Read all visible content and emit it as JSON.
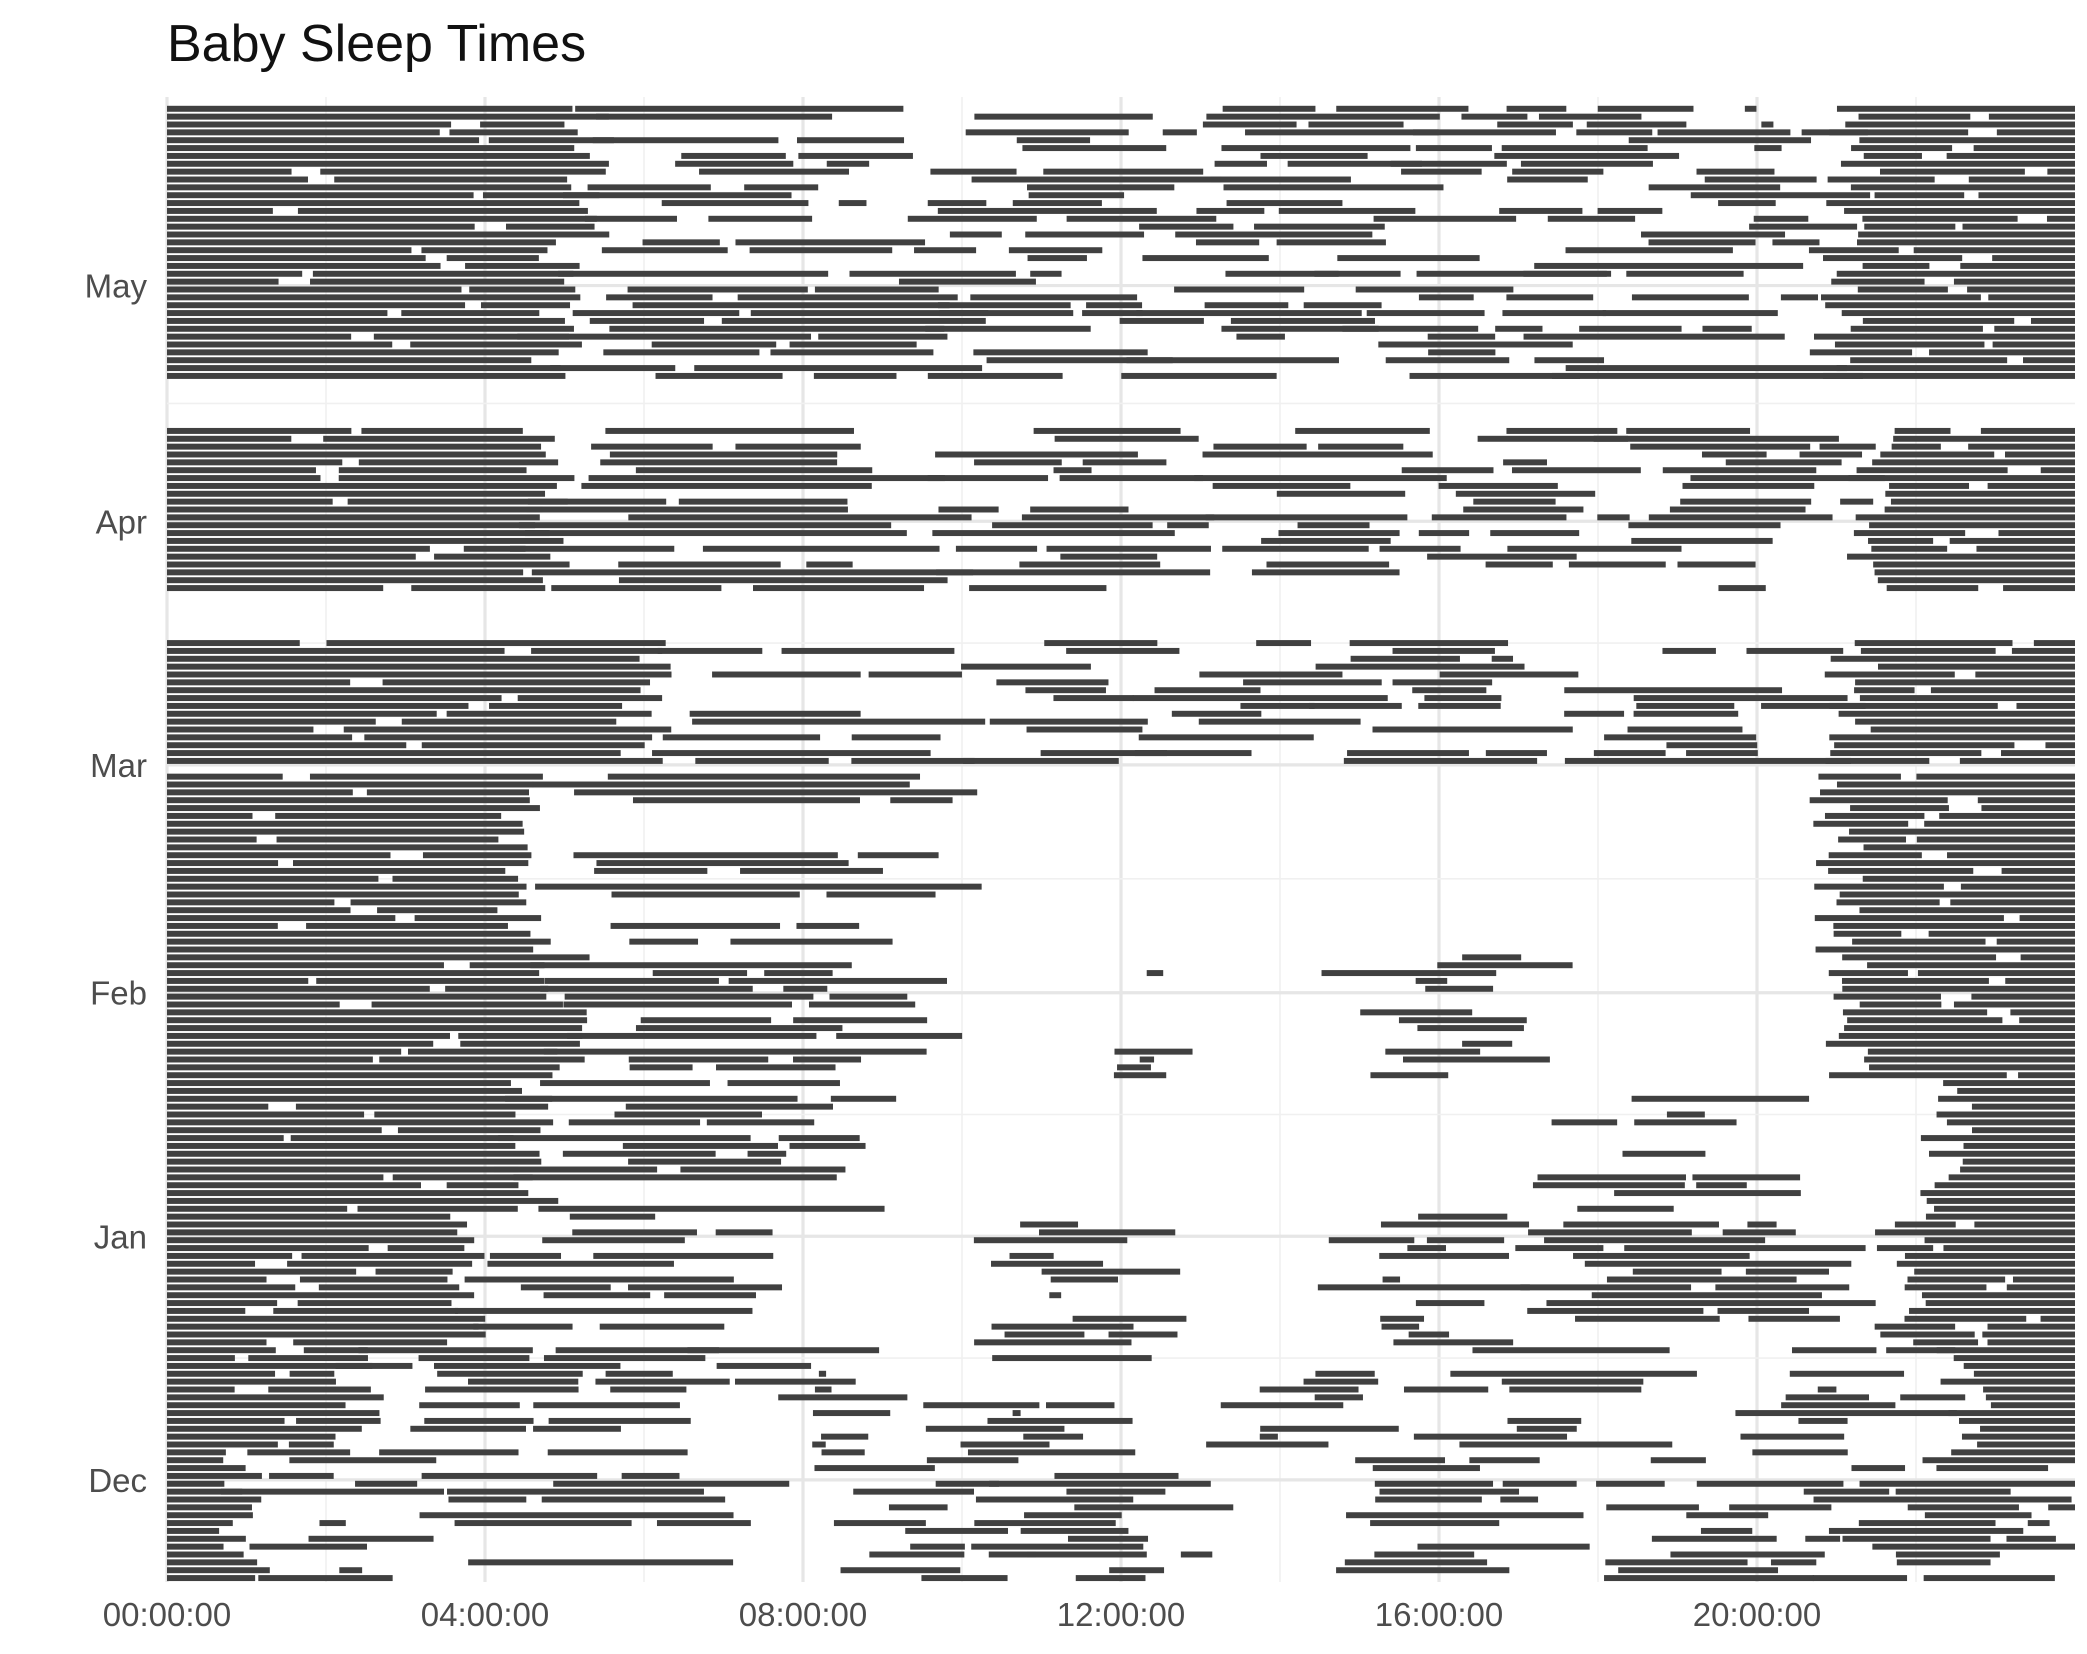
{
  "chart_data": {
    "type": "bar",
    "orientation": "horizontal-timeline",
    "title": "Baby Sleep Times",
    "xlabel": "",
    "ylabel": "",
    "x_ticks": [
      "00:00:00",
      "04:00:00",
      "08:00:00",
      "12:00:00",
      "16:00:00",
      "20:00:00"
    ],
    "x_tick_hours": [
      0,
      4,
      8,
      12,
      16,
      20
    ],
    "xlim_hours": [
      0,
      24
    ],
    "y_ticks": [
      "Dec",
      "Jan",
      "Feb",
      "Mar",
      "Apr",
      "May"
    ],
    "y_tick_days": [
      13,
      44,
      75,
      104,
      135,
      165
    ],
    "ylim_days": [
      0,
      189
    ],
    "date_gap_days": [
      147,
      153
    ],
    "grid": true,
    "legend": "none",
    "bar_color": "#404040",
    "series": [
      {
        "days_from": 0,
        "days_to": 16,
        "segments": [
          [
            0.0,
            1.0
          ],
          [
            1.5,
            2.6
          ],
          [
            4.0,
            7.3
          ],
          [
            8.8,
            10.2
          ],
          [
            11.0,
            12.6
          ],
          [
            15.2,
            17.0
          ],
          [
            18.6,
            20.2
          ],
          [
            21.4,
            23.8
          ]
        ]
      },
      {
        "days_from": 16,
        "days_to": 30,
        "segments": [
          [
            0.0,
            2.4
          ],
          [
            3.0,
            6.6
          ],
          [
            7.4,
            8.8
          ],
          [
            10.2,
            11.6
          ],
          [
            13.6,
            14.8
          ],
          [
            16.3,
            18.5
          ],
          [
            20.0,
            21.8
          ],
          [
            22.6,
            24.0
          ]
        ]
      },
      {
        "days_from": 30,
        "days_to": 47,
        "segments": [
          [
            0.0,
            3.8
          ],
          [
            4.3,
            6.9
          ],
          [
            10.9,
            12.0
          ],
          [
            15.0,
            16.3
          ],
          [
            17.8,
            20.6
          ],
          [
            21.8,
            24.0
          ]
        ]
      },
      {
        "days_from": 47,
        "days_to": 64,
        "segments": [
          [
            0.0,
            4.6
          ],
          [
            5.0,
            8.3
          ],
          [
            18.0,
            19.8
          ],
          [
            22.4,
            24.0
          ]
        ]
      },
      {
        "days_from": 64,
        "days_to": 80,
        "segments": [
          [
            0.0,
            5.0
          ],
          [
            5.4,
            9.2
          ],
          [
            11.6,
            12.6
          ],
          [
            15.4,
            16.8
          ],
          [
            21.2,
            24.0
          ]
        ]
      },
      {
        "days_from": 80,
        "days_to": 103,
        "segments": [
          [
            0.0,
            4.5
          ],
          [
            5.0,
            9.4
          ],
          [
            21.0,
            24.0
          ]
        ]
      },
      {
        "days_from": 104,
        "days_to": 120,
        "segments": [
          [
            0.0,
            6.0
          ],
          [
            6.4,
            9.6
          ],
          [
            10.5,
            12.0
          ],
          [
            13.0,
            14.5
          ],
          [
            15.2,
            17.4
          ],
          [
            18.0,
            20.5
          ],
          [
            21.2,
            24.0
          ]
        ]
      },
      {
        "days_from": 126,
        "days_to": 147,
        "segments": [
          [
            0.0,
            4.8
          ],
          [
            5.2,
            9.3
          ],
          [
            10.4,
            12.3
          ],
          [
            13.4,
            15.6
          ],
          [
            16.2,
            18.2
          ],
          [
            18.8,
            20.8
          ],
          [
            21.4,
            24.0
          ]
        ]
      },
      {
        "days_from": 153,
        "days_to": 171,
        "segments": [
          [
            0.0,
            4.9
          ],
          [
            5.3,
            9.8
          ],
          [
            10.0,
            11.8
          ],
          [
            12.6,
            14.5
          ],
          [
            15.0,
            17.3
          ],
          [
            17.8,
            20.5
          ],
          [
            21.0,
            24.0
          ]
        ]
      },
      {
        "days_from": 171,
        "days_to": 188,
        "segments": [
          [
            0.0,
            5.3
          ],
          [
            5.8,
            8.6
          ],
          [
            10.0,
            12.4
          ],
          [
            13.0,
            15.6
          ],
          [
            16.0,
            18.6
          ],
          [
            19.2,
            20.6
          ],
          [
            21.2,
            24.0
          ]
        ]
      }
    ]
  }
}
